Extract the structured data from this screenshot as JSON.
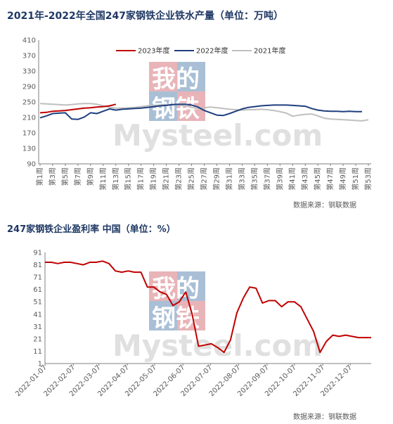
{
  "source_label": "数据来源：钢联数据",
  "watermark": {
    "line1": "我的",
    "line2": "钢铁",
    "brand": "Mysteel.com"
  },
  "colors": {
    "red": "#c00000",
    "navy": "#1f3f7f",
    "gray": "#bfbfbf",
    "title": "#1f3864",
    "wm_red": "#e8b4b8",
    "wm_blue": "#a9bfd6"
  },
  "chart_data": [
    {
      "type": "line",
      "title": "2021年-2022年全国247家钢铁企业铁水产量（单位：万吨）",
      "ylim": [
        90,
        410
      ],
      "yticks": [
        90,
        130,
        170,
        210,
        250,
        290,
        330,
        370,
        410
      ],
      "categories": [
        "第1周",
        "第3周",
        "第5周",
        "第7周",
        "第9周",
        "第11周",
        "第13周",
        "第15周",
        "第17周",
        "第19周",
        "第21周",
        "第23周",
        "第25周",
        "第27周",
        "第29周",
        "第31周",
        "第33周",
        "第35周",
        "第37周",
        "第39周",
        "第41周",
        "第43周",
        "第45周",
        "第47周",
        "第49周",
        "第51周",
        "第53周"
      ],
      "legend_position": "top",
      "series": [
        {
          "name": "2023年度",
          "color": "#c00000",
          "x": [
            1,
            2,
            3,
            4,
            5,
            6,
            7,
            8,
            9,
            10,
            11,
            12,
            13
          ],
          "values": [
            222,
            223,
            226,
            227,
            228,
            230,
            232,
            234,
            235,
            237,
            238,
            240,
            244
          ]
        },
        {
          "name": "2022年度",
          "color": "#1f3f7f",
          "x": [
            1,
            2,
            3,
            4,
            5,
            6,
            7,
            8,
            9,
            10,
            11,
            12,
            13,
            14,
            15,
            16,
            17,
            18,
            19,
            20,
            21,
            22,
            23,
            24,
            25,
            26,
            27,
            28,
            29,
            30,
            31,
            32,
            33,
            34,
            35,
            36,
            37,
            38,
            39,
            40,
            41,
            42,
            43,
            44,
            45,
            46,
            47,
            48,
            49,
            50,
            51,
            52
          ],
          "values": [
            209,
            214,
            220,
            221,
            222,
            206,
            205,
            211,
            222,
            220,
            226,
            232,
            229,
            231,
            232,
            233,
            234,
            236,
            238,
            240,
            241,
            243,
            244,
            244,
            242,
            237,
            228,
            222,
            216,
            215,
            220,
            226,
            232,
            236,
            238,
            240,
            241,
            242,
            242,
            242,
            241,
            240,
            239,
            233,
            229,
            227,
            226,
            226,
            225,
            226,
            225,
            225
          ]
        },
        {
          "name": "2021年度",
          "color": "#bfbfbf",
          "x": [
            1,
            2,
            3,
            4,
            5,
            6,
            7,
            8,
            9,
            10,
            11,
            12,
            13,
            14,
            15,
            16,
            17,
            18,
            19,
            20,
            21,
            22,
            23,
            24,
            25,
            26,
            27,
            28,
            29,
            30,
            31,
            32,
            33,
            34,
            35,
            36,
            37,
            38,
            39,
            40,
            41,
            42,
            43,
            44,
            45,
            46,
            47,
            48,
            49,
            50,
            51,
            52,
            53
          ],
          "values": [
            246,
            245,
            244,
            243,
            242,
            243,
            245,
            246,
            246,
            244,
            240,
            236,
            234,
            234,
            235,
            236,
            238,
            240,
            241,
            242,
            243,
            243,
            242,
            240,
            236,
            233,
            235,
            237,
            235,
            233,
            231,
            230,
            229,
            230,
            230,
            231,
            230,
            228,
            225,
            221,
            213,
            216,
            218,
            219,
            214,
            208,
            206,
            205,
            204,
            203,
            202,
            201,
            204
          ]
        }
      ]
    },
    {
      "type": "line",
      "title": "247家钢铁企业盈利率 中国（单位：%）",
      "ylim": [
        1,
        91
      ],
      "yticks": [
        1,
        11,
        21,
        31,
        41,
        51,
        61,
        71,
        81,
        91
      ],
      "x_ticks": [
        "2022-01-07",
        "2022-02-07",
        "2022-03-07",
        "2022-04-07",
        "2022-05-07",
        "2022-06-07",
        "2022-07-07",
        "2022-08-07",
        "2022-09-07",
        "2022-10-07",
        "2022-11-07",
        "2022-12-07"
      ],
      "series": [
        {
          "name": "",
          "color": "#c00000",
          "x": [
            "2022-01-07",
            "2022-01-14",
            "2022-01-21",
            "2022-01-28",
            "2022-02-04",
            "2022-02-11",
            "2022-02-18",
            "2022-02-25",
            "2022-03-04",
            "2022-03-11",
            "2022-03-18",
            "2022-03-25",
            "2022-04-01",
            "2022-04-08",
            "2022-04-15",
            "2022-04-22",
            "2022-04-29",
            "2022-05-06",
            "2022-05-13",
            "2022-05-20",
            "2022-05-27",
            "2022-06-03",
            "2022-06-10",
            "2022-06-17",
            "2022-06-24",
            "2022-07-01",
            "2022-07-08",
            "2022-07-15",
            "2022-07-22",
            "2022-07-29",
            "2022-08-05",
            "2022-08-12",
            "2022-08-19",
            "2022-08-26",
            "2022-09-02",
            "2022-09-09",
            "2022-09-16",
            "2022-09-23",
            "2022-09-30",
            "2022-10-07",
            "2022-10-14",
            "2022-10-21",
            "2022-10-28",
            "2022-11-04",
            "2022-11-11",
            "2022-11-18",
            "2022-11-25",
            "2022-12-02",
            "2022-12-09",
            "2022-12-16",
            "2022-12-23",
            "2022-12-30"
          ],
          "values": [
            83,
            83,
            82,
            83,
            83,
            82,
            81,
            83,
            83,
            84,
            82,
            76,
            75,
            76,
            75,
            75,
            63,
            63,
            59,
            57,
            48,
            51,
            59,
            41,
            15,
            16,
            17,
            14,
            10,
            20,
            42,
            54,
            63,
            62,
            50,
            52,
            52,
            47,
            51,
            51,
            47,
            37,
            27,
            10,
            19,
            24,
            23,
            24,
            23,
            22,
            22,
            22
          ]
        }
      ]
    }
  ]
}
